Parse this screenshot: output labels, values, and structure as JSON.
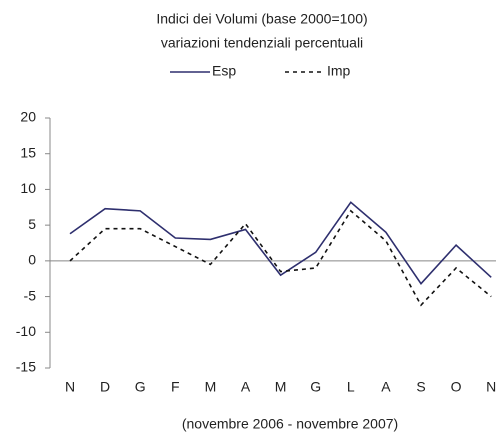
{
  "chart_data": {
    "type": "line",
    "title": "Indici dei Volumi (base 2000=100)",
    "subtitle": "variazioni tendenziali percentuali",
    "x_label": "(novembre 2006 - novembre 2007)",
    "categories": [
      "N",
      "D",
      "G",
      "F",
      "M",
      "A",
      "M",
      "G",
      "L",
      "A",
      "S",
      "O",
      "N"
    ],
    "series": [
      {
        "name": "Esp",
        "color": "#2e2f6e",
        "style": "solid",
        "values": [
          3.8,
          7.3,
          7.0,
          3.2,
          3.0,
          4.4,
          -2.0,
          1.2,
          8.2,
          4.0,
          -3.2,
          2.2,
          -2.3
        ]
      },
      {
        "name": "Imp",
        "color": "#111111",
        "style": "dashed",
        "values": [
          0.0,
          4.5,
          4.5,
          2.0,
          -0.5,
          5.2,
          -1.5,
          -1.0,
          7.0,
          2.8,
          -6.2,
          -1.0,
          -5.0
        ]
      }
    ],
    "ylim": [
      -15,
      20
    ],
    "yticks": [
      20,
      15,
      10,
      5,
      0,
      -5,
      -10,
      -15
    ],
    "legend": "top"
  }
}
